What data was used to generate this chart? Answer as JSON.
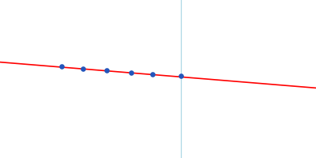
{
  "background_color": "#ffffff",
  "red_line_x": [
    -0.05,
    1.05
  ],
  "red_line_y": [
    0.615,
    0.435
  ],
  "line_color": "#ff0000",
  "line_width": 1.2,
  "vline_x": 0.572,
  "vline_color": "#add8e6",
  "vline_linewidth": 0.9,
  "data_points_x": [
    0.195,
    0.262,
    0.338,
    0.415,
    0.483,
    0.572
  ],
  "data_points_y": [
    0.582,
    0.566,
    0.554,
    0.541,
    0.531,
    0.52
  ],
  "point_color": "#2255bb",
  "point_size": 14,
  "figsize": [
    4.0,
    2.0
  ],
  "dpi": 100,
  "xlim": [
    0,
    1
  ],
  "ylim": [
    0,
    1
  ]
}
